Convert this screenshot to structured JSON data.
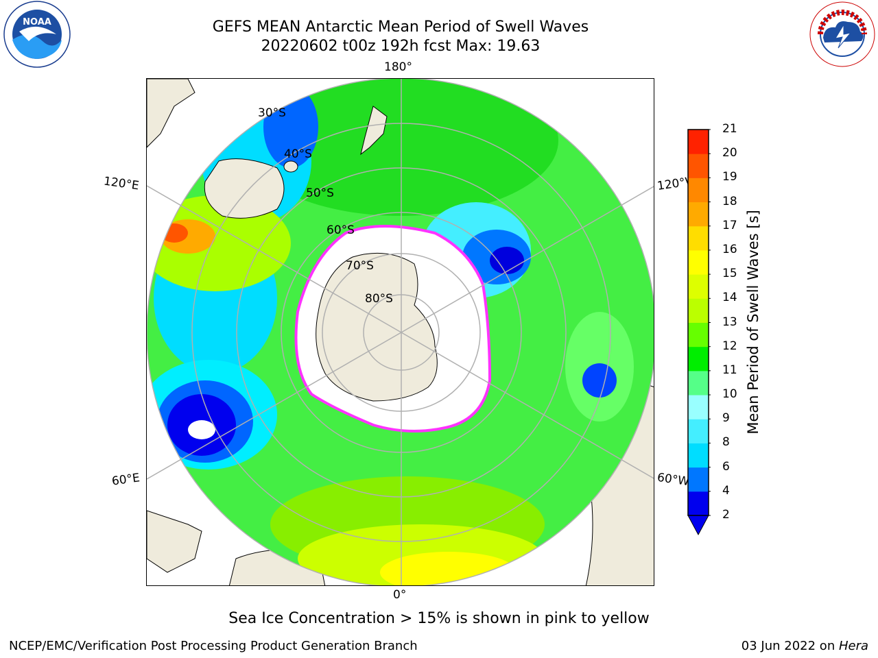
{
  "header": {
    "title_line1": "GEFS MEAN Antarctic Mean Period of Swell Waves",
    "title_line2": "20220602 t00z 192h fcst   Max: 19.63"
  },
  "logos": {
    "left": "noaa-logo",
    "right": "national-weather-service-logo"
  },
  "map": {
    "projection": "south-polar-stereographic",
    "longitude_labels": {
      "top": "180°",
      "upper_left": "120°E",
      "upper_right": "120°W",
      "lower_left": "60°E",
      "lower_right": "60°W",
      "bottom": "0°"
    },
    "latitude_labels": [
      "30°S",
      "40°S",
      "50°S",
      "60°S",
      "70°S",
      "80°S"
    ],
    "colors": {
      "land": "#efebdc",
      "sea_ice": "#ffffff",
      "sea_ice_edge": [
        "#ff33ff",
        "#ffcc44"
      ],
      "gridlines": "#b0b0b0"
    }
  },
  "colorbar": {
    "label": "Mean Period of Swell Waves [s]",
    "ticks": [
      "2",
      "4",
      "6",
      "8",
      "9",
      "10",
      "11",
      "12",
      "13",
      "14",
      "15",
      "16",
      "17",
      "18",
      "19",
      "20",
      "21"
    ],
    "colors": [
      "#0000ee",
      "#0077ff",
      "#00ddff",
      "#44eeff",
      "#99ffff",
      "#55ff88",
      "#00ee00",
      "#66ff00",
      "#bbff00",
      "#ddff00",
      "#ffff00",
      "#ffdd00",
      "#ffaa00",
      "#ff8800",
      "#ff5500",
      "#ff2200"
    ]
  },
  "caption": "Sea Ice Concentration > 15% is shown in pink to yellow",
  "footer": {
    "left": "NCEP/EMC/Verification Post Processing Product Generation Branch",
    "right_date": "03 Jun 2022 on ",
    "right_system": "Hera"
  }
}
